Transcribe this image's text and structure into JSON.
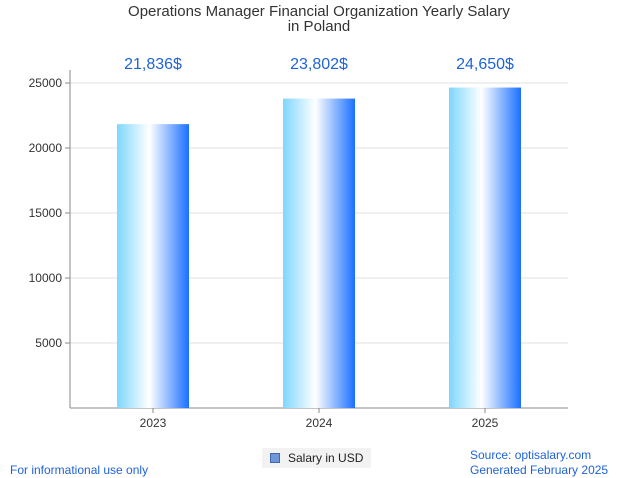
{
  "chart_data": {
    "type": "bar",
    "title_line1": "Operations Manager Financial Organization Yearly Salary",
    "title_line2": "in Poland",
    "categories": [
      "2023",
      "2024",
      "2025"
    ],
    "series": [
      {
        "name": "Salary in USD",
        "values": [
          21836,
          23802,
          24650
        ]
      }
    ],
    "value_labels": [
      "21,836$",
      "23,802$",
      "24,650$"
    ],
    "ylim": [
      0,
      25000
    ],
    "yticks": [
      5000,
      10000,
      15000,
      20000,
      25000
    ],
    "grid": true,
    "legend_position": "bottom-center",
    "bar_color_light": "#c9f0ff",
    "bar_color_dark": "#1a70ff",
    "label_color": "#1f63d8"
  },
  "footer": {
    "left": "For informational use only",
    "source": "Source: optisalary.com",
    "generated": "Generated February 2025"
  }
}
